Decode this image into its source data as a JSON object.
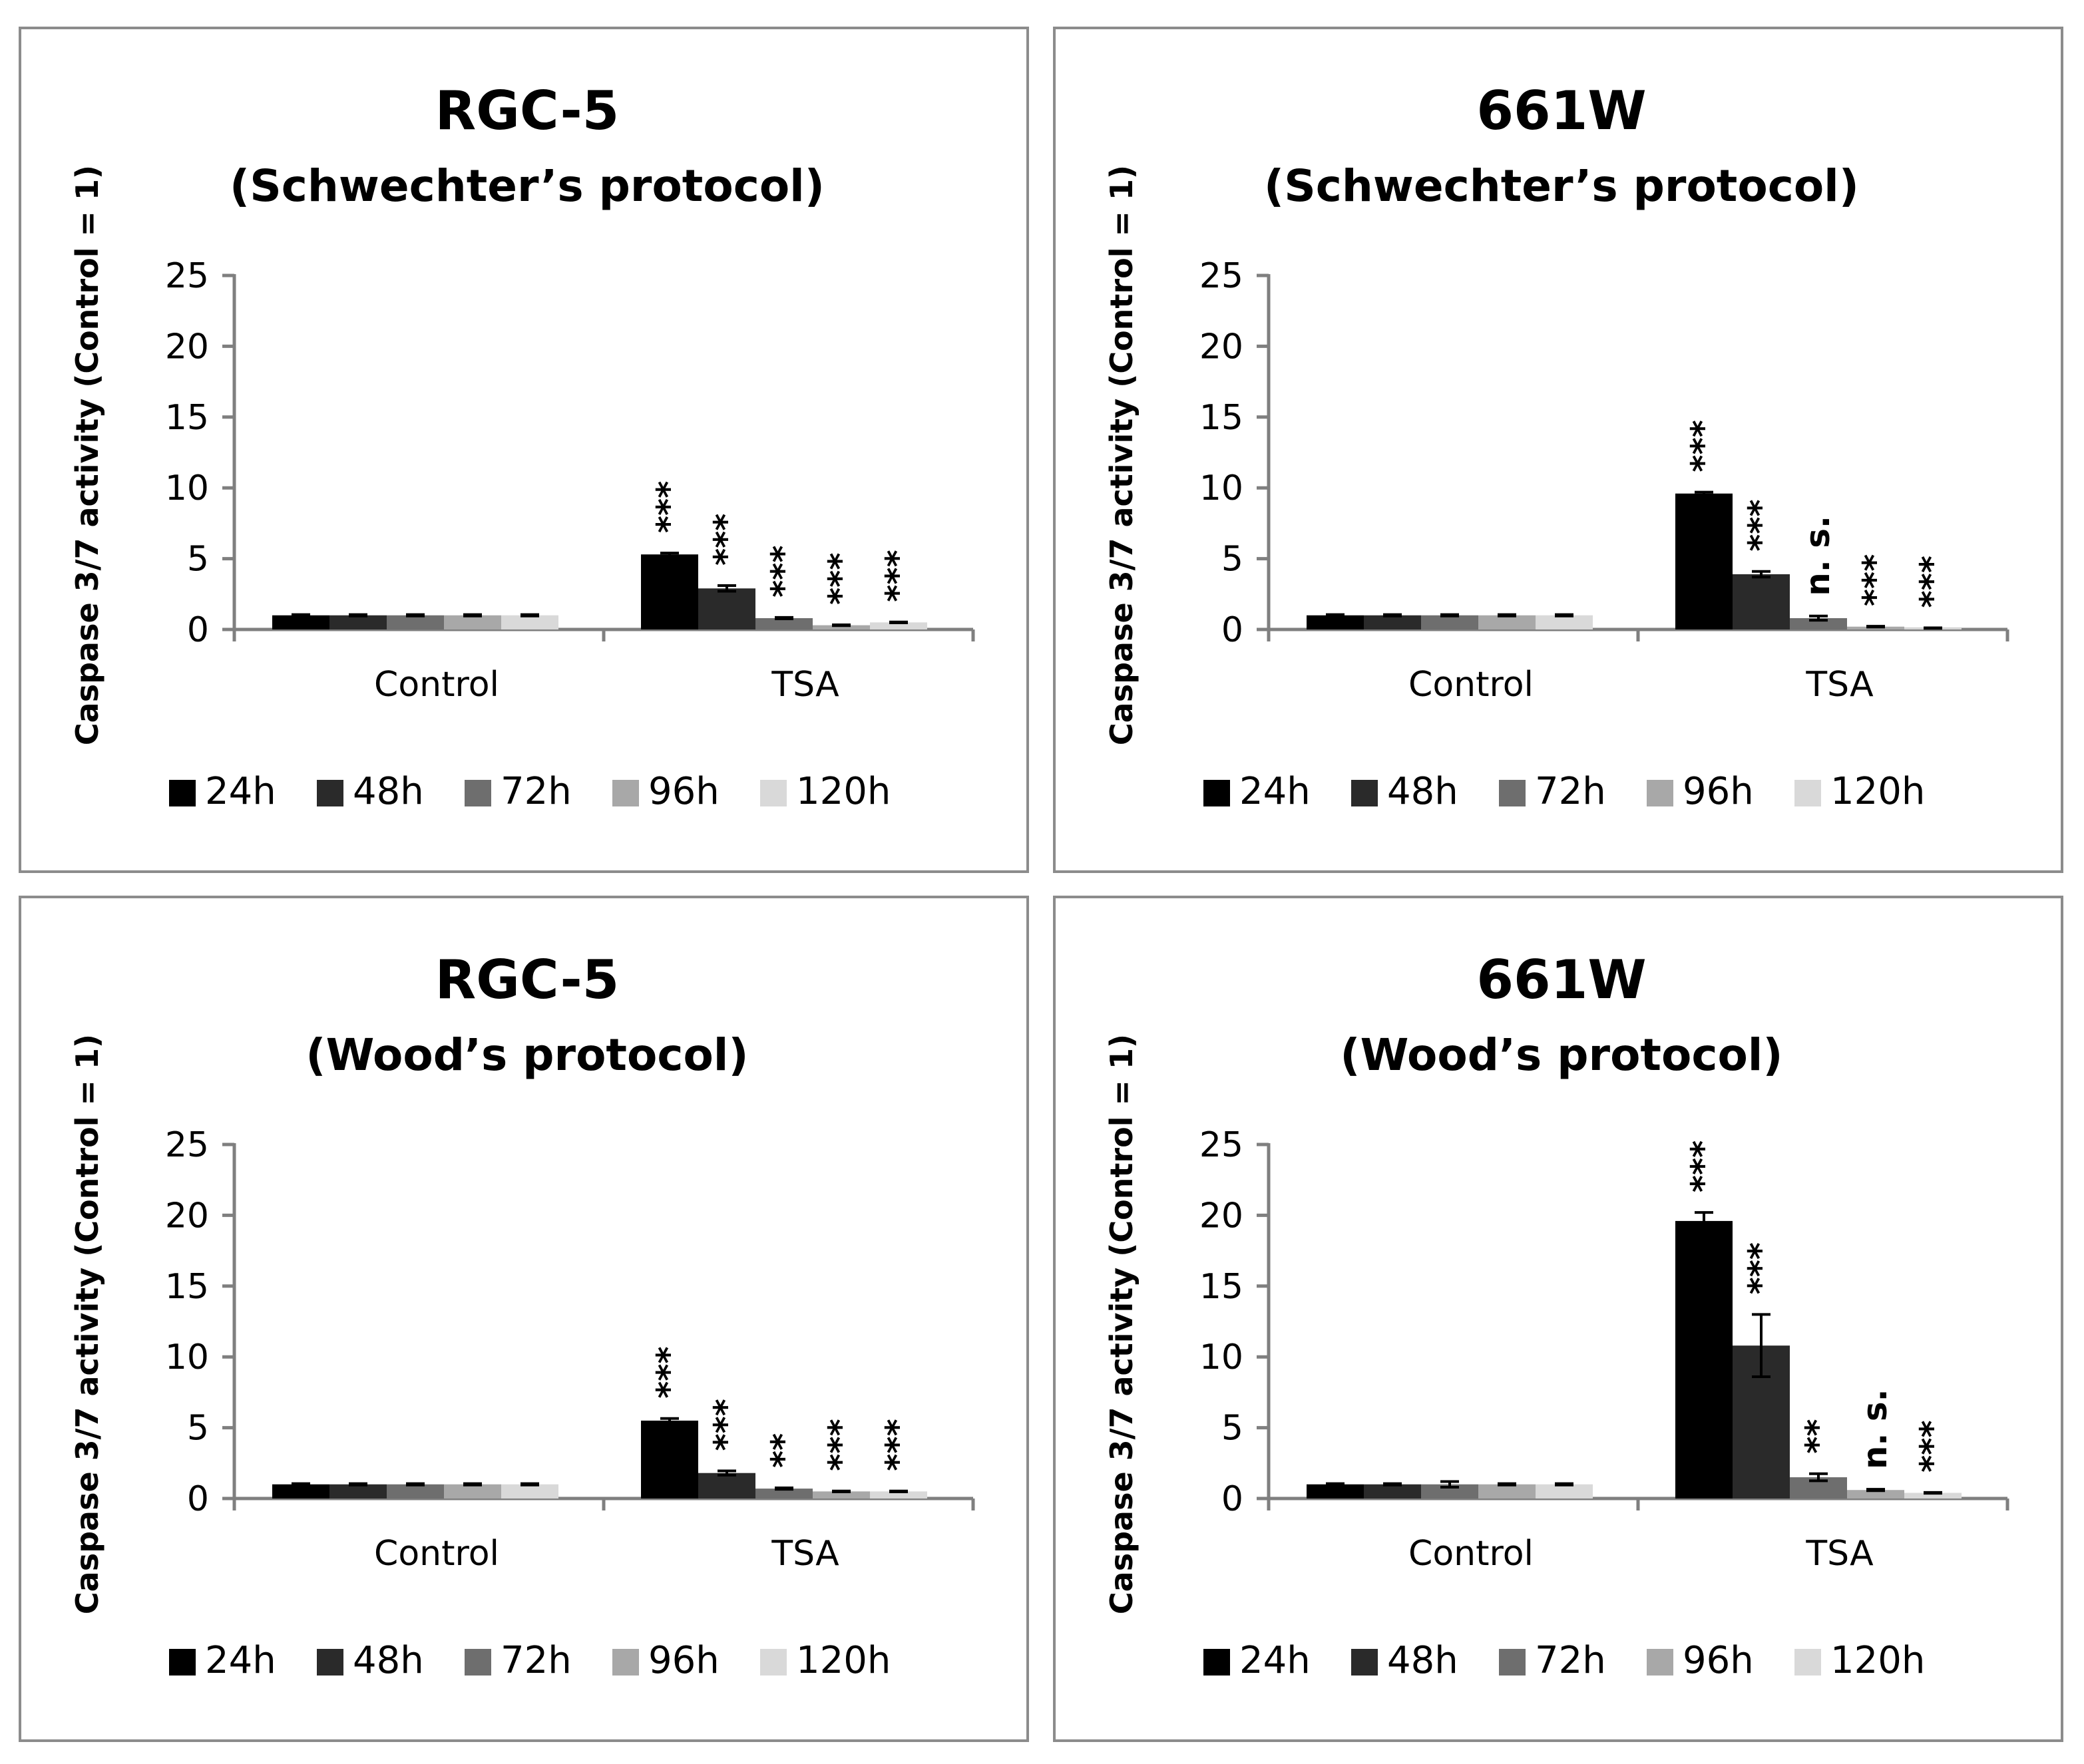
{
  "legend_colors": [
    "#000000",
    "#2a2a2a",
    "#6e6e6e",
    "#a8a8a8",
    "#d9d9d9"
  ],
  "chart_data": [
    {
      "type": "bar",
      "title": "RGC-5",
      "subtitle": "(Schwechter’s protocol)",
      "ylabel": "Caspase 3/7 activity (Control = 1)",
      "xlabel": "",
      "ylim": [
        0,
        25
      ],
      "yticks": [
        "0",
        "5",
        "10",
        "15",
        "20",
        "25"
      ],
      "categories": [
        "Control",
        "TSA"
      ],
      "grid": false,
      "legend_position": "bottom",
      "series": [
        {
          "name": "24h",
          "values": [
            1,
            5.3
          ],
          "errors": [
            0.05,
            0.1
          ]
        },
        {
          "name": "48h",
          "values": [
            1,
            2.9
          ],
          "errors": [
            0.05,
            0.2
          ]
        },
        {
          "name": "72h",
          "values": [
            1,
            0.8
          ],
          "errors": [
            0.05,
            0.05
          ]
        },
        {
          "name": "96h",
          "values": [
            1,
            0.3
          ],
          "errors": [
            0.05,
            0.03
          ]
        },
        {
          "name": "120h",
          "values": [
            1,
            0.5
          ],
          "errors": [
            0.05,
            0.03
          ]
        }
      ],
      "annotations": [
        "***",
        "***",
        "***",
        "***",
        "***"
      ]
    },
    {
      "type": "bar",
      "title": "661W",
      "subtitle": "(Schwechter’s protocol)",
      "ylabel": "Caspase 3/7 activity (Control = 1)",
      "xlabel": "",
      "ylim": [
        0,
        25
      ],
      "yticks": [
        "0",
        "5",
        "10",
        "15",
        "20",
        "25"
      ],
      "categories": [
        "Control",
        "TSA"
      ],
      "grid": false,
      "legend_position": "bottom",
      "series": [
        {
          "name": "24h",
          "values": [
            1,
            9.6
          ],
          "errors": [
            0.05,
            0.1
          ]
        },
        {
          "name": "48h",
          "values": [
            1,
            3.9
          ],
          "errors": [
            0.05,
            0.2
          ]
        },
        {
          "name": "72h",
          "values": [
            1,
            0.8
          ],
          "errors": [
            0.05,
            0.15
          ]
        },
        {
          "name": "96h",
          "values": [
            1,
            0.2
          ],
          "errors": [
            0.05,
            0.03
          ]
        },
        {
          "name": "120h",
          "values": [
            1,
            0.1
          ],
          "errors": [
            0.05,
            0.02
          ]
        }
      ],
      "annotations": [
        "***",
        "***",
        "n. s.",
        "***",
        "***"
      ]
    },
    {
      "type": "bar",
      "title": "RGC-5",
      "subtitle": "(Wood’s protocol)",
      "ylabel": "Caspase 3/7 activity (Control = 1)",
      "xlabel": "",
      "ylim": [
        0,
        25
      ],
      "yticks": [
        "0",
        "5",
        "10",
        "15",
        "20",
        "25"
      ],
      "categories": [
        "Control",
        "TSA"
      ],
      "grid": false,
      "legend_position": "bottom",
      "series": [
        {
          "name": "24h",
          "values": [
            1,
            5.5
          ],
          "errors": [
            0.05,
            0.15
          ]
        },
        {
          "name": "48h",
          "values": [
            1,
            1.8
          ],
          "errors": [
            0.05,
            0.15
          ]
        },
        {
          "name": "72h",
          "values": [
            1,
            0.7
          ],
          "errors": [
            0.05,
            0.05
          ]
        },
        {
          "name": "96h",
          "values": [
            1,
            0.5
          ],
          "errors": [
            0.05,
            0.03
          ]
        },
        {
          "name": "120h",
          "values": [
            1,
            0.5
          ],
          "errors": [
            0.05,
            0.03
          ]
        }
      ],
      "annotations": [
        "***",
        "***",
        "**",
        "***",
        "***"
      ]
    },
    {
      "type": "bar",
      "title": "661W",
      "subtitle": "(Wood’s protocol)",
      "ylabel": "Caspase 3/7 activity (Control = 1)",
      "xlabel": "",
      "ylim": [
        0,
        25
      ],
      "yticks": [
        "0",
        "5",
        "10",
        "15",
        "20",
        "25"
      ],
      "categories": [
        "Control",
        "TSA"
      ],
      "grid": false,
      "legend_position": "bottom",
      "series": [
        {
          "name": "24h",
          "values": [
            1,
            19.6
          ],
          "errors": [
            0.05,
            0.6
          ]
        },
        {
          "name": "48h",
          "values": [
            1,
            10.8
          ],
          "errors": [
            0.05,
            2.2
          ]
        },
        {
          "name": "72h",
          "values": [
            1,
            1.5
          ],
          "errors": [
            0.2,
            0.25
          ]
        },
        {
          "name": "96h",
          "values": [
            1,
            0.6
          ],
          "errors": [
            0.05,
            0.05
          ]
        },
        {
          "name": "120h",
          "values": [
            1,
            0.4
          ],
          "errors": [
            0.05,
            0.03
          ]
        }
      ],
      "annotations": [
        "***",
        "***",
        "**",
        "n. s.",
        "***"
      ]
    }
  ]
}
